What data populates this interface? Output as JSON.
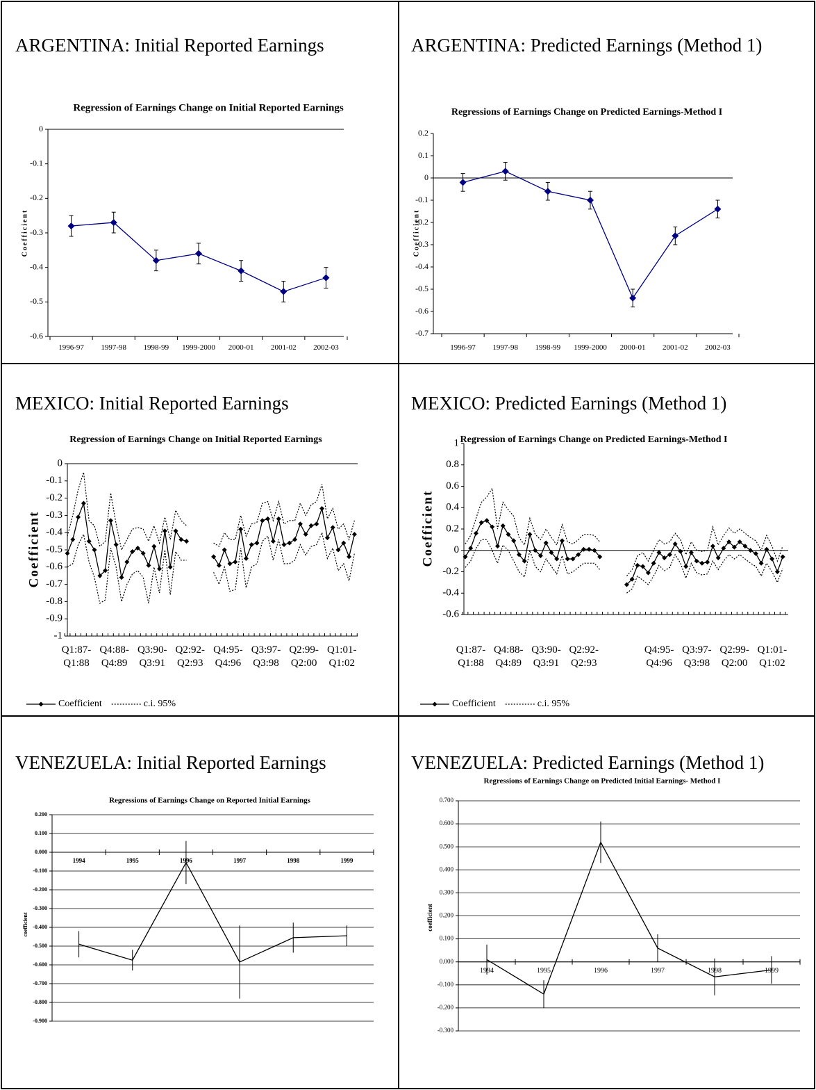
{
  "chart_data": [
    {
      "type": "line",
      "heading": "ARGENTINA: Initial Reported Earnings",
      "title": "Regression of Earnings Change on Initial Reported Earnings",
      "y_label": "Coefficient",
      "categories": [
        "1996-97",
        "1997-98",
        "1998-99",
        "1999-2000",
        "2000-01",
        "2001-02",
        "2002-03"
      ],
      "ylim": [
        -0.6,
        0
      ],
      "yticks": [
        0,
        -0.1,
        -0.2,
        -0.3,
        -0.4,
        -0.5,
        -0.6
      ],
      "grid": false,
      "series": [
        {
          "color": "#000080",
          "marker": "diamond",
          "line_style": "solid",
          "error_color": "#000000",
          "error_caps": true,
          "values": [
            -0.28,
            -0.27,
            -0.38,
            -0.36,
            -0.41,
            -0.47,
            -0.43
          ],
          "errors": [
            0.03,
            0.03,
            0.03,
            0.03,
            0.03,
            0.03,
            0.03
          ]
        }
      ]
    },
    {
      "type": "line",
      "heading": "ARGENTINA: Predicted Earnings (Method 1)",
      "title": "Regressions of Earnings Change on Predicted Earnings-Method I",
      "y_label": "Coefficient",
      "categories": [
        "1996-97",
        "1997-98",
        "1998-99",
        "1999-2000",
        "2000-01",
        "2001-02",
        "2002-03"
      ],
      "ylim": [
        -0.7,
        0.2
      ],
      "yticks": [
        0.2,
        0.1,
        0,
        -0.1,
        -0.2,
        -0.3,
        -0.4,
        -0.5,
        -0.6,
        -0.7
      ],
      "grid": false,
      "series": [
        {
          "color": "#000080",
          "marker": "diamond",
          "line_style": "solid",
          "error_color": "#000000",
          "error_caps": true,
          "values": [
            -0.02,
            0.03,
            -0.06,
            -0.1,
            -0.54,
            -0.26,
            -0.14
          ],
          "errors": [
            0.04,
            0.04,
            0.04,
            0.04,
            0.04,
            0.04,
            0.04
          ]
        }
      ]
    },
    {
      "type": "line",
      "heading": "MEXICO: Initial Reported Earnings",
      "title": "Regression of Earnings Change on Initial Reported Earnings",
      "y_label": "Coefficient",
      "categories": [
        "Q1:87-\nQ1:88",
        null,
        null,
        null,
        null,
        null,
        null,
        "Q4:88-\nQ4:89",
        null,
        null,
        null,
        null,
        null,
        null,
        "Q3:90-\nQ3:91",
        null,
        null,
        null,
        null,
        null,
        null,
        "Q2:92-\nQ2:93",
        null,
        null,
        null,
        null,
        null,
        null,
        "Q4:95-\nQ4:96",
        null,
        null,
        null,
        null,
        null,
        null,
        "Q3:97-\nQ3:98",
        null,
        null,
        null,
        null,
        null,
        null,
        "Q2:99-\nQ2:00",
        null,
        null,
        null,
        null,
        null,
        null,
        "Q1:01-\nQ1:02",
        null,
        null,
        null,
        null
      ],
      "ylim": [
        -1,
        0
      ],
      "yticks": [
        0,
        -0.1,
        -0.2,
        -0.3,
        -0.4,
        -0.5,
        -0.6,
        -0.7,
        -0.8,
        -0.9,
        -1
      ],
      "grid": false,
      "legend": "bottom-left",
      "series": [
        {
          "name": "Coefficient",
          "color": "#000000",
          "marker": "diamond",
          "line_style": "solid",
          "values": [
            -0.52,
            -0.44,
            -0.31,
            -0.23,
            -0.45,
            -0.5,
            -0.65,
            -0.62,
            -0.33,
            -0.47,
            -0.66,
            -0.57,
            -0.51,
            -0.49,
            -0.52,
            -0.59,
            -0.48,
            -0.61,
            -0.39,
            -0.6,
            -0.39,
            -0.44,
            -0.45,
            null,
            null,
            null,
            null,
            -0.54,
            -0.59,
            -0.5,
            -0.58,
            -0.57,
            -0.38,
            -0.55,
            -0.47,
            -0.46,
            -0.33,
            -0.32,
            -0.45,
            -0.32,
            -0.47,
            -0.46,
            -0.44,
            -0.35,
            -0.41,
            -0.36,
            -0.35,
            -0.26,
            -0.43,
            -0.37,
            -0.5,
            -0.46,
            -0.54,
            -0.41
          ]
        },
        {
          "name": "c.i. 95%",
          "color": "#000000",
          "line_style": "dotted",
          "upper": [
            -0.42,
            -0.3,
            -0.15,
            -0.05,
            -0.33,
            -0.36,
            -0.48,
            -0.45,
            -0.17,
            -0.35,
            -0.5,
            -0.44,
            -0.38,
            -0.37,
            -0.38,
            -0.45,
            -0.36,
            -0.46,
            -0.31,
            -0.44,
            -0.27,
            -0.33,
            -0.36,
            null,
            null,
            null,
            null,
            -0.46,
            -0.48,
            -0.4,
            -0.44,
            -0.44,
            -0.3,
            -0.42,
            -0.35,
            -0.34,
            -0.23,
            -0.22,
            -0.33,
            -0.22,
            -0.35,
            -0.33,
            -0.33,
            -0.23,
            -0.3,
            -0.24,
            -0.22,
            -0.12,
            -0.32,
            -0.26,
            -0.38,
            -0.35,
            -0.44,
            -0.33
          ],
          "lower": [
            -0.6,
            -0.58,
            -0.47,
            -0.41,
            -0.57,
            -0.66,
            -0.81,
            -0.79,
            -0.49,
            -0.6,
            -0.8,
            -0.7,
            -0.64,
            -0.62,
            -0.66,
            -0.81,
            -0.6,
            -0.75,
            -0.5,
            -0.76,
            -0.51,
            -0.56,
            -0.56,
            null,
            null,
            null,
            null,
            -0.63,
            -0.7,
            -0.6,
            -0.74,
            -0.73,
            -0.49,
            -0.72,
            -0.6,
            -0.58,
            -0.45,
            -0.42,
            -0.56,
            -0.44,
            -0.58,
            -0.58,
            -0.56,
            -0.47,
            -0.53,
            -0.48,
            -0.47,
            -0.4,
            -0.55,
            -0.49,
            -0.62,
            -0.58,
            -0.68,
            -0.52
          ]
        }
      ]
    },
    {
      "type": "line",
      "heading": "MEXICO: Predicted Earnings (Method 1)",
      "title": "Regression of Earnings Change on Predicted Earnings-Method I",
      "y_label": "Coefficient",
      "categories": [
        "Q1:87-\nQ1:88",
        null,
        null,
        null,
        null,
        null,
        null,
        "Q4:88-\nQ4:89",
        null,
        null,
        null,
        null,
        null,
        null,
        "Q3:90-\nQ3:91",
        null,
        null,
        null,
        null,
        null,
        null,
        "Q2:92-\nQ2:93",
        null,
        null,
        null,
        null,
        null,
        null,
        null,
        null,
        null,
        null,
        null,
        null,
        null,
        "Q4:95-\nQ4:96",
        null,
        null,
        null,
        null,
        null,
        null,
        "Q3:97-\nQ3:98",
        null,
        null,
        null,
        null,
        null,
        null,
        "Q2:99-\nQ2:00",
        null,
        null,
        null,
        null,
        null,
        null,
        "Q1:01-\nQ1:02",
        null,
        null,
        null
      ],
      "ylim": [
        -0.6,
        1
      ],
      "yticks": [
        1,
        0.8,
        0.6,
        0.4,
        0.2,
        0,
        -0.2,
        -0.4,
        -0.6
      ],
      "grid": false,
      "legend": "bottom-left",
      "series": [
        {
          "name": "Coefficient",
          "color": "#000000",
          "marker": "diamond",
          "line_style": "solid",
          "values": [
            -0.06,
            0.02,
            0.16,
            0.26,
            0.28,
            0.22,
            0.04,
            0.23,
            0.15,
            0.09,
            -0.04,
            -0.1,
            0.15,
            0,
            -0.05,
            0.07,
            -0.02,
            -0.08,
            0.09,
            -0.08,
            -0.08,
            -0.04,
            0.01,
            0.01,
            0,
            -0.06,
            null,
            null,
            null,
            null,
            -0.32,
            -0.27,
            -0.14,
            -0.15,
            -0.21,
            -0.12,
            -0.02,
            -0.07,
            -0.04,
            0.06,
            -0.01,
            -0.15,
            -0.02,
            -0.1,
            -0.12,
            -0.11,
            0.04,
            -0.07,
            0.02,
            0.08,
            0.03,
            0.08,
            0.04,
            0,
            -0.03,
            -0.12,
            0.01,
            -0.08,
            -0.2,
            -0.06
          ]
        },
        {
          "name": "c.i. 95%",
          "color": "#000000",
          "line_style": "dotted",
          "upper": [
            0.06,
            0.14,
            0.3,
            0.45,
            0.5,
            0.58,
            0.2,
            0.45,
            0.38,
            0.32,
            0.12,
            0.05,
            0.3,
            0.15,
            0.1,
            0.2,
            0.12,
            0.05,
            0.24,
            0.08,
            0.06,
            0.1,
            0.15,
            0.15,
            0.14,
            0.08,
            null,
            null,
            null,
            null,
            -0.24,
            -0.18,
            -0.05,
            -0.02,
            -0.1,
            0,
            0.1,
            0.06,
            0.08,
            0.16,
            0.1,
            -0.04,
            0.08,
            0,
            -0.01,
            0,
            0.22,
            0.05,
            0.14,
            0.21,
            0.16,
            0.2,
            0.16,
            0.12,
            0.09,
            0,
            0.14,
            0.04,
            -0.1,
            0.04
          ],
          "lower": [
            -0.16,
            -0.1,
            0.02,
            0.1,
            0.1,
            0,
            -0.12,
            0.05,
            0,
            -0.1,
            -0.2,
            -0.25,
            0,
            -0.15,
            -0.2,
            -0.08,
            -0.15,
            -0.22,
            -0.05,
            -0.22,
            -0.2,
            -0.16,
            -0.12,
            -0.12,
            -0.12,
            -0.18,
            null,
            null,
            null,
            null,
            -0.4,
            -0.36,
            -0.24,
            -0.28,
            -0.32,
            -0.24,
            -0.14,
            -0.19,
            -0.16,
            -0.04,
            -0.12,
            -0.26,
            -0.12,
            -0.21,
            -0.23,
            -0.22,
            -0.1,
            -0.18,
            -0.1,
            -0.04,
            -0.08,
            -0.04,
            -0.08,
            -0.12,
            -0.15,
            -0.24,
            -0.12,
            -0.2,
            -0.3,
            -0.17
          ]
        }
      ]
    },
    {
      "type": "line",
      "heading": "VENEZUELA: Initial Reported Earnings",
      "title": "Regressions of  Earnings Change on Reported Initial Earnings",
      "y_label": "coefficient",
      "categories": [
        "1994",
        "1995",
        "1996",
        "1997",
        "1998",
        "1999"
      ],
      "ylim": [
        -0.9,
        0.2
      ],
      "yticks": [
        {
          "value": 0.2,
          "label": "0.200"
        },
        {
          "value": 0.1,
          "label": "0.100"
        },
        {
          "value": 0,
          "label": "0.000"
        },
        {
          "value": -0.1,
          "label": "-0.100"
        },
        {
          "value": -0.2,
          "label": "-0.200"
        },
        {
          "value": -0.3,
          "label": "-0.300"
        },
        {
          "value": -0.4,
          "label": "-0.400"
        },
        {
          "value": -0.5,
          "label": "-0.500"
        },
        {
          "value": -0.6,
          "label": "-0.600"
        },
        {
          "value": -0.7,
          "label": "-0.700"
        },
        {
          "value": -0.8,
          "label": "-0.800"
        },
        {
          "value": -0.9,
          "label": "-0.900"
        }
      ],
      "grid": true,
      "series": [
        {
          "color": "#000000",
          "line_style": "solid",
          "error_color": "#000000",
          "values": [
            -0.49,
            -0.575,
            -0.055,
            -0.585,
            -0.455,
            -0.445
          ],
          "errors": [
            0.07,
            0.055,
            0.115,
            0.195,
            0.08,
            0.055
          ]
        }
      ]
    },
    {
      "type": "line",
      "heading": "VENEZUELA: Predicted Earnings (Method 1)",
      "title": "Regressions of  Earnings Change on Predicted Initial Earnings- Method I",
      "y_label": "coefficient",
      "categories": [
        "1994",
        "1995",
        "1996",
        "1997",
        "1998",
        "1999"
      ],
      "ylim": [
        -0.3,
        0.7
      ],
      "yticks": [
        {
          "value": 0.7,
          "label": "0.700"
        },
        {
          "value": 0.6,
          "label": "0.600"
        },
        {
          "value": 0.5,
          "label": "0.500"
        },
        {
          "value": 0.4,
          "label": "0.400"
        },
        {
          "value": 0.3,
          "label": "0.300"
        },
        {
          "value": 0.2,
          "label": "0.200"
        },
        {
          "value": 0.1,
          "label": "0.100"
        },
        {
          "value": 0,
          "label": "0.000"
        },
        {
          "value": -0.1,
          "label": "-0.100"
        },
        {
          "value": -0.2,
          "label": "-0.200"
        },
        {
          "value": -0.3,
          "label": "-0.300"
        }
      ],
      "grid": true,
      "series": [
        {
          "color": "#000000",
          "line_style": "solid",
          "error_color": "#000000",
          "values": [
            0.01,
            -0.14,
            0.52,
            0.06,
            -0.065,
            -0.035
          ],
          "errors": [
            0.065,
            0.06,
            0.09,
            0.06,
            0.08,
            0.06
          ]
        }
      ]
    }
  ]
}
